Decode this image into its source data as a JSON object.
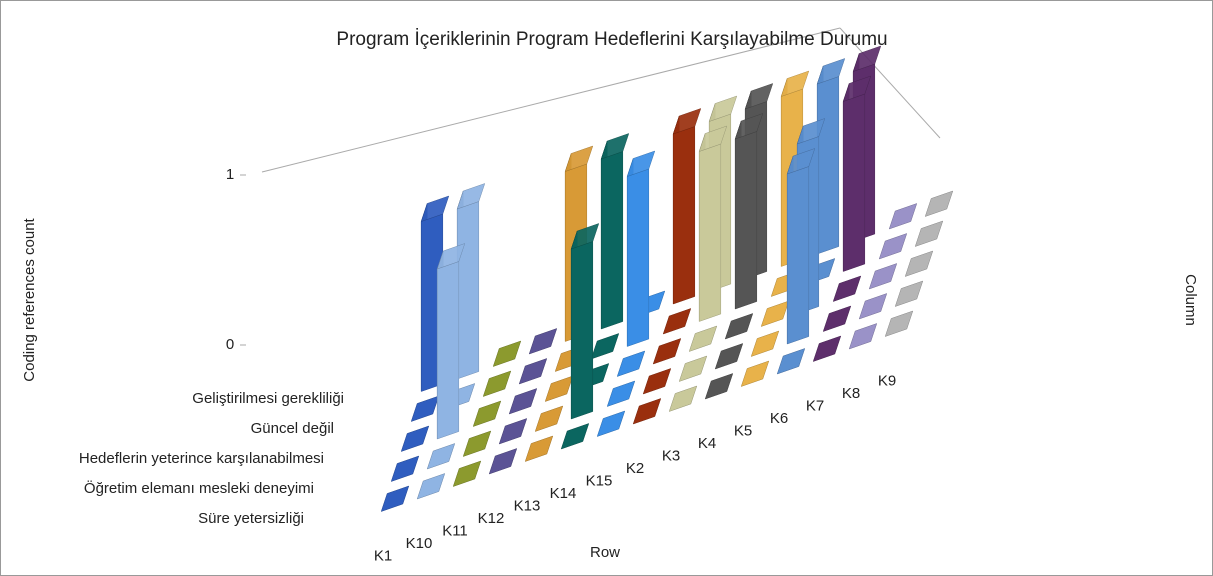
{
  "chart_data": {
    "type": "bar3d",
    "title": "Program İçeriklerinin Program Hedeflerini Karşılayabilme Durumu",
    "z_label": "Coding references count",
    "x_label": "Row",
    "depth_label": "Column",
    "categories": [
      "K1",
      "K10",
      "K11",
      "K12",
      "K13",
      "K14",
      "K15",
      "K2",
      "K3",
      "K4",
      "K5",
      "K6",
      "K7",
      "K8",
      "K9"
    ],
    "colors": [
      "#2f5dbf",
      "#8fb4e3",
      "#8c9a2e",
      "#5b5395",
      "#d89a36",
      "#0b6660",
      "#3a8ee6",
      "#9a2f0e",
      "#c9c99a",
      "#555555",
      "#e8b24a",
      "#5a8fd0",
      "#5d2e6b",
      "#9a92c8",
      "#b5b5b5"
    ],
    "series": [
      {
        "name": "Süre yetersizliği",
        "values": [
          0,
          0,
          0,
          0,
          0,
          0,
          0,
          0,
          0,
          0,
          0,
          0,
          0,
          0,
          0
        ]
      },
      {
        "name": "Öğretim elemanı mesleki deneyimi",
        "values": [
          0,
          0,
          0,
          0,
          0,
          1,
          0,
          0,
          0,
          0,
          0,
          1,
          0,
          0,
          0
        ]
      },
      {
        "name": "Hedeflerin yeterince karşılanabilmesi",
        "values": [
          0,
          1,
          0,
          0,
          0,
          0,
          0,
          0,
          0,
          0,
          0,
          1,
          0,
          0,
          0
        ]
      },
      {
        "name": "Güncel değil",
        "values": [
          0,
          0,
          0,
          0,
          0,
          0,
          1,
          0,
          1,
          1,
          0,
          0,
          1,
          0,
          0
        ]
      },
      {
        "name": "Geliştirilmesi gerekliliği",
        "values": [
          1,
          1,
          0,
          0,
          1,
          1,
          0,
          1,
          1,
          1,
          1,
          1,
          1,
          0,
          0
        ]
      }
    ],
    "zlim": [
      0,
      1
    ],
    "zticks": [
      0,
      1
    ]
  }
}
